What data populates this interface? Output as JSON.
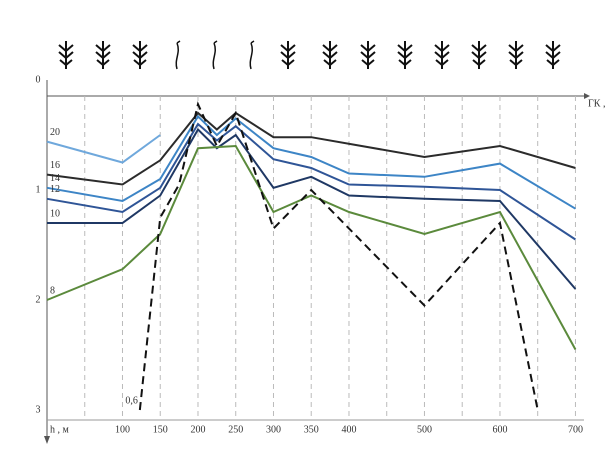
{
  "chart_data": {
    "type": "line",
    "x_label": "ГК , м",
    "y_label": "h , м",
    "xlim": [
      0,
      710
    ],
    "ylim": [
      0,
      3
    ],
    "y_inverted": true,
    "xticks": [
      100,
      150,
      200,
      250,
      300,
      350,
      400,
      500,
      600,
      700
    ],
    "yticks": [
      0,
      1,
      2,
      3
    ],
    "grid_x": [
      50,
      100,
      150,
      200,
      250,
      300,
      350,
      400,
      450,
      500,
      550,
      600,
      650,
      700
    ],
    "series": [
      {
        "name": "20",
        "color": "#6fa8dc",
        "dash": false,
        "x": [
          0,
          100,
          150
        ],
        "values": [
          0.56,
          0.75,
          0.5
        ]
      },
      {
        "name": "16",
        "color": "#2b2b2b",
        "dash": false,
        "x": [
          0,
          100,
          150,
          200,
          225,
          250,
          300,
          350,
          500,
          600,
          700
        ],
        "values": [
          0.86,
          0.95,
          0.73,
          0.3,
          0.45,
          0.3,
          0.52,
          0.52,
          0.7,
          0.6,
          0.8
        ]
      },
      {
        "name": "14",
        "color": "#3d85c6",
        "dash": false,
        "x": [
          0,
          100,
          150,
          200,
          225,
          250,
          300,
          350,
          400,
          500,
          600,
          700
        ],
        "values": [
          0.98,
          1.1,
          0.9,
          0.33,
          0.5,
          0.35,
          0.62,
          0.7,
          0.85,
          0.88,
          0.76,
          1.17
        ]
      },
      {
        "name": "12",
        "color": "#2f5597",
        "dash": false,
        "x": [
          0,
          100,
          150,
          200,
          225,
          250,
          300,
          350,
          400,
          500,
          600,
          700
        ],
        "values": [
          1.08,
          1.2,
          0.98,
          0.4,
          0.55,
          0.42,
          0.72,
          0.8,
          0.95,
          0.97,
          1.0,
          1.45
        ]
      },
      {
        "name": "10",
        "color": "#1f3864",
        "dash": false,
        "x": [
          0,
          100,
          150,
          200,
          225,
          250,
          300,
          350,
          400,
          500,
          600,
          700
        ],
        "values": [
          1.3,
          1.3,
          1.05,
          0.45,
          0.62,
          0.5,
          0.98,
          0.88,
          1.05,
          1.08,
          1.1,
          1.9
        ]
      },
      {
        "name": "8",
        "color": "#5b8a3c",
        "dash": false,
        "x": [
          0,
          100,
          150,
          200,
          250,
          300,
          350,
          400,
          500,
          600,
          700
        ],
        "values": [
          2.0,
          1.72,
          1.4,
          0.62,
          0.6,
          1.2,
          1.05,
          1.2,
          1.4,
          1.2,
          2.45
        ]
      },
      {
        "name": "0,6",
        "color": "#111111",
        "dash": true,
        "x": [
          123,
          150,
          175,
          200,
          225,
          250,
          300,
          350,
          500,
          600,
          650
        ],
        "values": [
          3.0,
          1.25,
          0.95,
          0.22,
          0.6,
          0.3,
          1.35,
          1.0,
          2.05,
          1.3,
          3.0
        ]
      }
    ]
  }
}
